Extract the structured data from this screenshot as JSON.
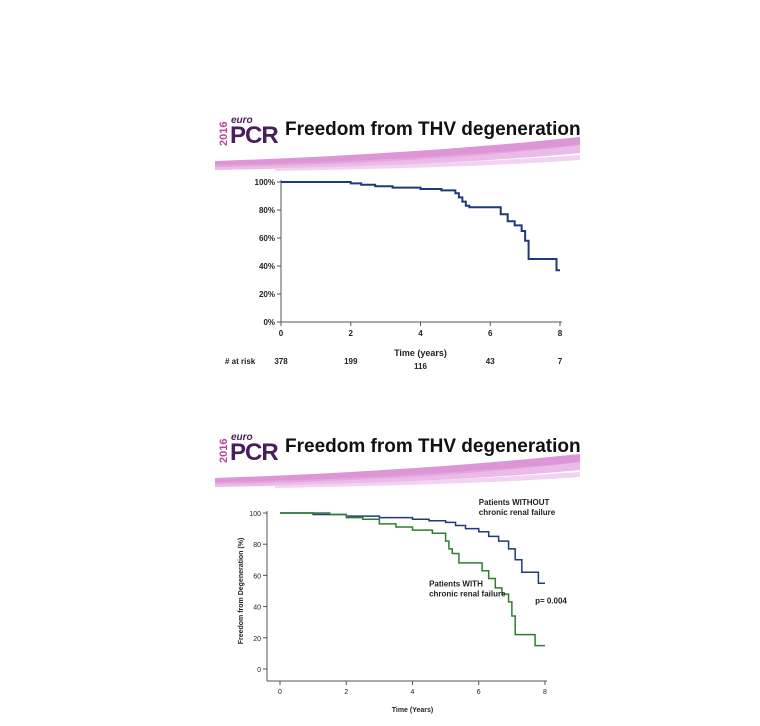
{
  "slides": [
    {
      "logo": {
        "year": "2016",
        "euro": "euro",
        "brand": "PCR"
      },
      "title": "Freedom from THV degeneration",
      "chart_data": {
        "type": "line",
        "title": "",
        "xlabel": "Time (years)",
        "ylabel": "",
        "xlim": [
          0,
          8
        ],
        "ylim": [
          0,
          100
        ],
        "x_ticks": [
          "0",
          "2",
          "4",
          "6",
          "8"
        ],
        "y_ticks": [
          "0%",
          "20%",
          "40%",
          "60%",
          "80%",
          "100%"
        ],
        "grid": false,
        "series": [
          {
            "name": "",
            "color": "#1f3a7a",
            "x": [
              0,
              1.8,
              2.0,
              2.3,
              2.7,
              3.2,
              4.0,
              4.6,
              5.0,
              5.1,
              5.2,
              5.3,
              5.4,
              6.0,
              6.3,
              6.5,
              6.7,
              6.9,
              7.0,
              7.1,
              7.9,
              8.0
            ],
            "y": [
              100,
              100,
              99,
              98,
              97,
              96,
              95,
              94,
              92,
              89,
              86,
              83,
              82,
              82,
              77,
              72,
              69,
              65,
              58,
              45,
              37,
              37
            ]
          }
        ],
        "risk_table": {
          "label": "# at risk",
          "values": [
            "378",
            "199",
            "116",
            "43",
            "7"
          ],
          "at": [
            0,
            2,
            4,
            6,
            8
          ]
        }
      }
    },
    {
      "logo": {
        "year": "2016",
        "euro": "euro",
        "brand": "PCR"
      },
      "title": "Freedom from THV degeneration",
      "chart_data": {
        "type": "line",
        "title": "",
        "xlabel": "Time (Years)",
        "ylabel": "Freedom from Degeneration (%)",
        "xlim": [
          0,
          8
        ],
        "ylim": [
          0,
          100
        ],
        "x_ticks": [
          "0",
          "2",
          "4",
          "6",
          "8"
        ],
        "y_ticks": [
          "0",
          "20",
          "40",
          "60",
          "80",
          "100"
        ],
        "grid": false,
        "series": [
          {
            "name": "",
            "color": "#1f3a7a",
            "x": [
              0,
              1.0,
              1.5,
              2.0,
              2.5,
              3.0,
              3.5,
              4.0,
              4.5,
              5.0,
              5.3,
              5.6,
              6.0,
              6.3,
              6.6,
              6.9,
              7.1,
              7.3,
              7.8,
              8.0
            ],
            "y": [
              100,
              99,
              99,
              98,
              98,
              97,
              97,
              96,
              95,
              94,
              92,
              90,
              88,
              85,
              82,
              77,
              70,
              62,
              55,
              55
            ]
          },
          {
            "name": "",
            "color": "#2e7d32",
            "x": [
              0,
              1.5,
              2.0,
              2.5,
              3.0,
              3.5,
              4.0,
              4.6,
              5.0,
              5.1,
              5.2,
              5.4,
              5.9,
              6.1,
              6.3,
              6.5,
              6.7,
              6.9,
              7.0,
              7.1,
              7.7,
              8.0
            ],
            "y": [
              100,
              99,
              97,
              96,
              93,
              91,
              89,
              87,
              82,
              77,
              74,
              68,
              68,
              63,
              58,
              52,
              48,
              43,
              34,
              22,
              15,
              15
            ]
          }
        ],
        "annotations": [
          {
            "lines": [
              "Patients WITHOUT",
              "chronic renal failure"
            ],
            "x": 6.0,
            "y": 105
          },
          {
            "lines": [
              "Patients WITH",
              "chronic renal failure"
            ],
            "x": 4.5,
            "y": 53
          },
          {
            "lines": [
              "p= 0.004"
            ],
            "x": 7.7,
            "y": 42
          }
        ]
      }
    }
  ]
}
